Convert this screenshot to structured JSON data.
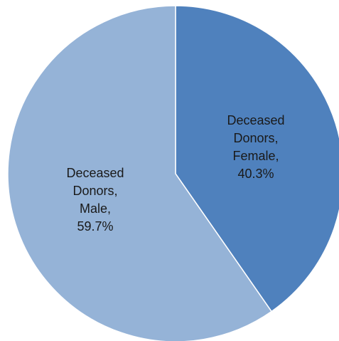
{
  "chart_data": {
    "type": "pie",
    "slices": [
      {
        "label": "Deceased Donors, Female",
        "value": 40.3,
        "value_label": "40.3%",
        "label_lines": [
          "Deceased",
          "Donors,",
          "Female,",
          "40.3%"
        ],
        "color": "#4f81bd"
      },
      {
        "label": "Deceased Donors, Male",
        "value": 59.7,
        "value_label": "59.7%",
        "label_lines": [
          "Deceased",
          "Donors,",
          "Male,",
          "59.7%"
        ],
        "color": "#95b3d7"
      }
    ],
    "start_angle": "12 o'clock",
    "direction": "clockwise",
    "legend": "none",
    "data_labels": "inside"
  }
}
